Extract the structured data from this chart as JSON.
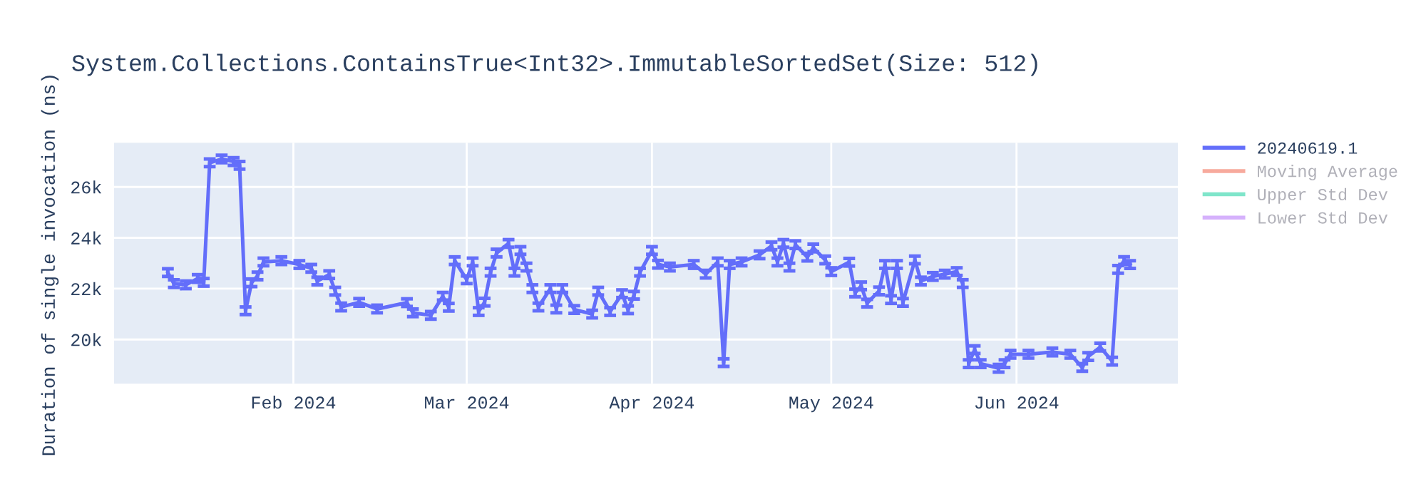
{
  "chart_data": {
    "type": "line",
    "title": "System.Collections.ContainsTrue<Int32>.ImmutableSortedSet(Size: 512)",
    "ylabel": "Duration of single invocation (ns)",
    "x": [
      "2024-01-11",
      "2024-01-12",
      "2024-01-14",
      "2024-01-16",
      "2024-01-17",
      "2024-01-18",
      "2024-01-20",
      "2024-01-22",
      "2024-01-23",
      "2024-01-24",
      "2024-01-25",
      "2024-01-26",
      "2024-01-27",
      "2024-01-30",
      "2024-02-02",
      "2024-02-04",
      "2024-02-05",
      "2024-02-07",
      "2024-02-08",
      "2024-02-09",
      "2024-02-12",
      "2024-02-15",
      "2024-02-20",
      "2024-02-21",
      "2024-02-24",
      "2024-02-26",
      "2024-02-27",
      "2024-02-28",
      "2024-03-01",
      "2024-03-02",
      "2024-03-03",
      "2024-03-04",
      "2024-03-05",
      "2024-03-06",
      "2024-03-08",
      "2024-03-09",
      "2024-03-10",
      "2024-03-11",
      "2024-03-12",
      "2024-03-13",
      "2024-03-15",
      "2024-03-16",
      "2024-03-17",
      "2024-03-19",
      "2024-03-22",
      "2024-03-23",
      "2024-03-25",
      "2024-03-27",
      "2024-03-28",
      "2024-03-29",
      "2024-03-30",
      "2024-04-01",
      "2024-04-02",
      "2024-04-04",
      "2024-04-08",
      "2024-04-10",
      "2024-04-12",
      "2024-04-13",
      "2024-04-14",
      "2024-04-16",
      "2024-04-19",
      "2024-04-21",
      "2024-04-22",
      "2024-04-23",
      "2024-04-24",
      "2024-04-25",
      "2024-04-27",
      "2024-04-28",
      "2024-04-30",
      "2024-05-01",
      "2024-05-04",
      "2024-05-05",
      "2024-05-06",
      "2024-05-07",
      "2024-05-09",
      "2024-05-10",
      "2024-05-11",
      "2024-05-12",
      "2024-05-13",
      "2024-05-15",
      "2024-05-16",
      "2024-05-18",
      "2024-05-20",
      "2024-05-22",
      "2024-05-23",
      "2024-05-24",
      "2024-05-25",
      "2024-05-26",
      "2024-05-29",
      "2024-05-30",
      "2024-05-31",
      "2024-06-03",
      "2024-06-07",
      "2024-06-10",
      "2024-06-12",
      "2024-06-13",
      "2024-06-15",
      "2024-06-17",
      "2024-06-18",
      "2024-06-19",
      "2024-06-20"
    ],
    "series": [
      {
        "name": "20240619.1",
        "color": "#636efa",
        "values": [
          22630,
          22200,
          22150,
          22400,
          22250,
          26950,
          27100,
          27000,
          26850,
          21130,
          22230,
          22500,
          23050,
          23100,
          22950,
          22800,
          22300,
          22550,
          21900,
          21280,
          21460,
          21200,
          21450,
          21050,
          20950,
          21700,
          21270,
          23100,
          22350,
          23050,
          21100,
          21470,
          22650,
          23400,
          23780,
          22650,
          23500,
          22850,
          22000,
          21280,
          22000,
          21200,
          22000,
          21180,
          21000,
          21900,
          21100,
          21800,
          21170,
          21740,
          22650,
          23500,
          22960,
          22850,
          22950,
          22570,
          23050,
          19090,
          22950,
          23050,
          23330,
          23680,
          23050,
          23780,
          22850,
          23730,
          23240,
          23600,
          23130,
          22670,
          23040,
          21830,
          22110,
          21430,
          21910,
          22950,
          21570,
          22950,
          21460,
          23130,
          22300,
          22480,
          22570,
          22670,
          22200,
          19050,
          19600,
          19050,
          18870,
          19050,
          19420,
          19420,
          19510,
          19420,
          18900,
          19330,
          19700,
          19150,
          22760,
          23100,
          22950
        ],
        "errors": [
          150,
          150,
          150,
          150,
          150,
          150,
          150,
          150,
          150,
          150,
          150,
          150,
          150,
          150,
          150,
          150,
          150,
          150,
          150,
          150,
          150,
          150,
          150,
          150,
          150,
          150,
          150,
          150,
          150,
          150,
          150,
          150,
          150,
          150,
          150,
          150,
          150,
          150,
          150,
          150,
          150,
          150,
          150,
          150,
          150,
          150,
          150,
          150,
          150,
          150,
          150,
          150,
          150,
          150,
          150,
          150,
          150,
          150,
          150,
          150,
          150,
          150,
          150,
          150,
          150,
          150,
          150,
          150,
          150,
          150,
          150,
          150,
          150,
          150,
          150,
          150,
          150,
          150,
          150,
          150,
          150,
          150,
          150,
          150,
          150,
          150,
          150,
          150,
          150,
          150,
          150,
          150,
          150,
          150,
          150,
          150,
          150,
          150,
          150,
          150,
          150
        ]
      },
      {
        "name": "Moving Average",
        "color": "#ef553b",
        "values": [
          null,
          null,
          null,
          null,
          null,
          null,
          null,
          null,
          null,
          null,
          null,
          null,
          null,
          null,
          null,
          null,
          null,
          null,
          null,
          null,
          null,
          null,
          null,
          null,
          null,
          null,
          null,
          null,
          null,
          null,
          null,
          null,
          null,
          null,
          null,
          null,
          null,
          null,
          null,
          null,
          null,
          null,
          null,
          null,
          null,
          null,
          null,
          null,
          null,
          null,
          null,
          null,
          null,
          null,
          null,
          null,
          null,
          null,
          null,
          null,
          null,
          null,
          null,
          null,
          null,
          null,
          null,
          null,
          null,
          null,
          null,
          null,
          null,
          null,
          null,
          null,
          null,
          null,
          null,
          null,
          null,
          null,
          null,
          null,
          null,
          null,
          null,
          null,
          null,
          null,
          null,
          null,
          null,
          null,
          null,
          null,
          null,
          null,
          null,
          null,
          null
        ]
      },
      {
        "name": "Upper Std Dev",
        "color": "#00cc96",
        "values": [
          null,
          null,
          null,
          null,
          null,
          null,
          null,
          null,
          null,
          null,
          null,
          null,
          null,
          null,
          null,
          null,
          null,
          null,
          null,
          null,
          null,
          null,
          null,
          null,
          null,
          null,
          null,
          null,
          null,
          null,
          null,
          null,
          null,
          null,
          null,
          null,
          null,
          null,
          null,
          null,
          null,
          null,
          null,
          null,
          null,
          null,
          null,
          null,
          null,
          null,
          null,
          null,
          null,
          null,
          null,
          null,
          null,
          null,
          null,
          null,
          null,
          null,
          null,
          null,
          null,
          null,
          null,
          null,
          null,
          null,
          null,
          null,
          null,
          null,
          null,
          null,
          null,
          null,
          null,
          null,
          null,
          null,
          null,
          null,
          null,
          null,
          null,
          null,
          null,
          null,
          null,
          null,
          null,
          null,
          null,
          null,
          null,
          null,
          null,
          null,
          null
        ]
      },
      {
        "name": "Lower Std Dev",
        "color": "#ab63fa",
        "values": [
          null,
          null,
          null,
          null,
          null,
          null,
          null,
          null,
          null,
          null,
          null,
          null,
          null,
          null,
          null,
          null,
          null,
          null,
          null,
          null,
          null,
          null,
          null,
          null,
          null,
          null,
          null,
          null,
          null,
          null,
          null,
          null,
          null,
          null,
          null,
          null,
          null,
          null,
          null,
          null,
          null,
          null,
          null,
          null,
          null,
          null,
          null,
          null,
          null,
          null,
          null,
          null,
          null,
          null,
          null,
          null,
          null,
          null,
          null,
          null,
          null,
          null,
          null,
          null,
          null,
          null,
          null,
          null,
          null,
          null,
          null,
          null,
          null,
          null,
          null,
          null,
          null,
          null,
          null,
          null,
          null,
          null,
          null,
          null,
          null,
          null,
          null,
          null,
          null,
          null,
          null,
          null,
          null,
          null,
          null,
          null,
          null,
          null,
          null,
          null,
          null
        ]
      }
    ],
    "xlim": [
      "2024-01-02",
      "2024-06-28"
    ],
    "xticks": [
      {
        "value": "2024-02-01",
        "label": "Feb 2024"
      },
      {
        "value": "2024-03-01",
        "label": "Mar 2024"
      },
      {
        "value": "2024-04-01",
        "label": "Apr 2024"
      },
      {
        "value": "2024-05-01",
        "label": "May 2024"
      },
      {
        "value": "2024-06-01",
        "label": "Jun 2024"
      }
    ],
    "ylim": [
      18260,
      27740
    ],
    "yticks": [
      {
        "value": 20000,
        "label": "20k"
      },
      {
        "value": 22000,
        "label": "22k"
      },
      {
        "value": 24000,
        "label": "24k"
      },
      {
        "value": 26000,
        "label": "26k"
      }
    ],
    "grid": true,
    "legend": "right",
    "marker": "none",
    "line_style": "solid"
  }
}
